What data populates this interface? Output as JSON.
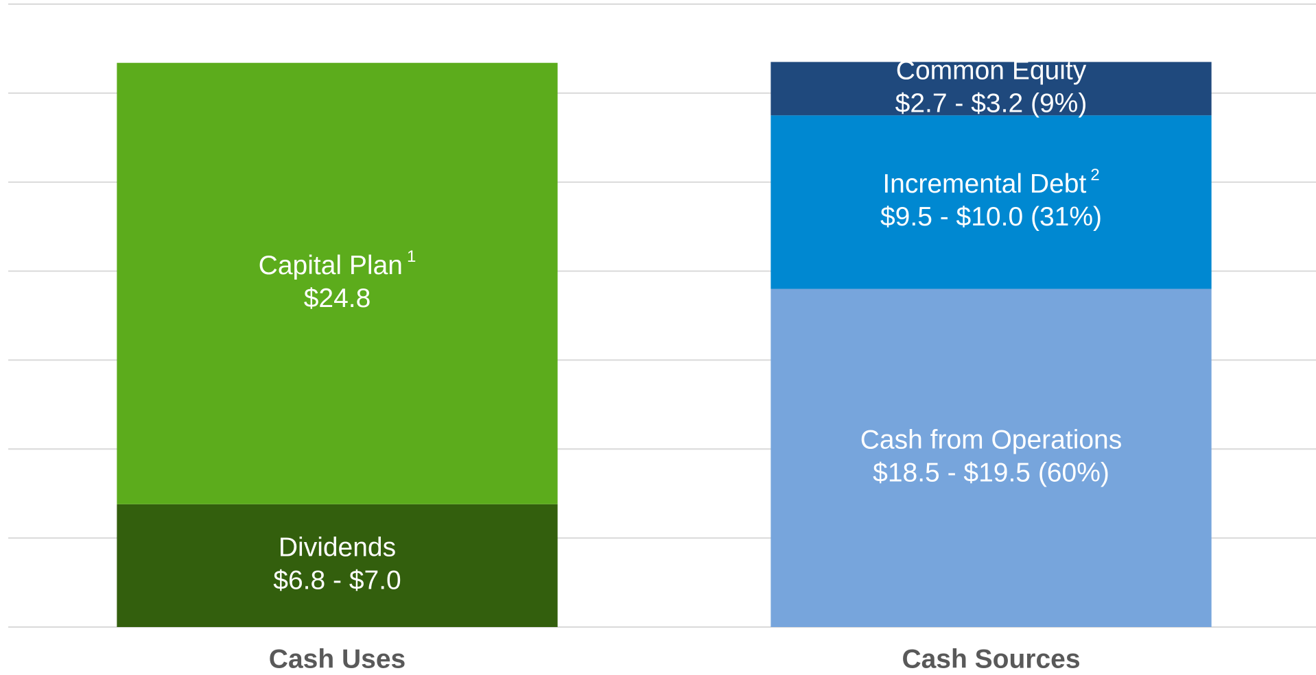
{
  "chart_data": {
    "type": "stacked-bar",
    "categories": [
      "Cash Uses",
      "Cash Sources"
    ],
    "series": [
      {
        "name": "Dividends",
        "color": "#335f0d",
        "values": [
          6.9,
          null
        ],
        "value_labels": [
          "$6.8 - $7.0",
          null
        ]
      },
      {
        "name": "Capital Plan",
        "footnote": "1",
        "color": "#5cac1c",
        "values": [
          24.8,
          null
        ],
        "value_labels": [
          "$24.8",
          null
        ]
      },
      {
        "name": "Cash from Operations",
        "color": "#77a5dc",
        "values": [
          null,
          19.0
        ],
        "value_labels": [
          null,
          "$18.5 - $19.5 (60%)"
        ]
      },
      {
        "name": "Incremental Debt",
        "footnote": "2",
        "color": "#0088d1",
        "values": [
          null,
          9.75
        ],
        "value_labels": [
          null,
          "$9.5 - $10.0 (31%)"
        ]
      },
      {
        "name": "Common Equity",
        "color": "#1f497d",
        "values": [
          null,
          3.0
        ],
        "value_labels": [
          null,
          "$2.7 - $3.2 (9%)"
        ]
      }
    ],
    "ylim": [
      0,
      35
    ],
    "yticks": [
      0,
      5,
      10,
      15,
      20,
      25,
      30,
      35
    ],
    "grid": true
  }
}
